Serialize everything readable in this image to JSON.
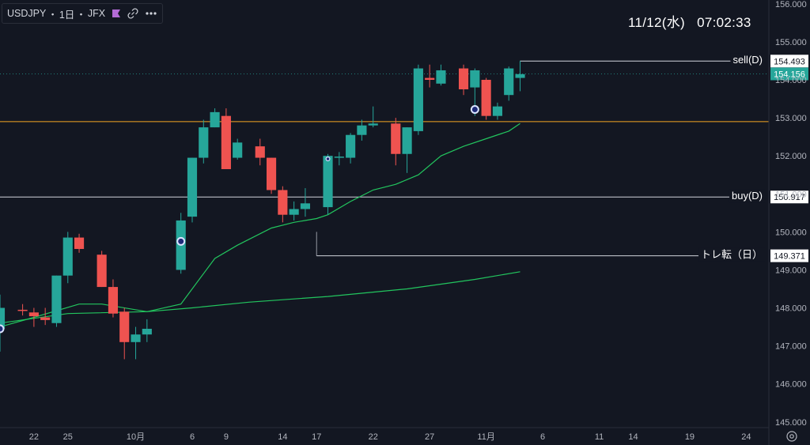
{
  "symbol_bar": {
    "symbol": "USDJPY",
    "separator": "・",
    "timeframe": "1日",
    "exchange": "JFX",
    "flag_icon": "flag-icon",
    "link_icon": "link-icon",
    "more_icon": "more-icon"
  },
  "clock": {
    "date": "11/12(水)",
    "time": "07:02:33"
  },
  "settings_icon": "gear-icon",
  "colors": {
    "background": "#131722",
    "up": "#26a69a",
    "down": "#ef5350",
    "ma_fast": "#22c55e",
    "ma_slow": "#22c55e",
    "orange_line": "#f5a623",
    "level_line": "#d1d4dc",
    "last_price": "#26a69a"
  },
  "chart_data": {
    "type": "candlestick",
    "x_start": "2025-09-19",
    "x_end": "2025-11-26",
    "y_range": [
      144.85,
      156.1
    ],
    "y_ticks": [
      "145.000",
      "146.000",
      "147.000",
      "148.000",
      "149.000",
      "150.000",
      "151.000",
      "152.000",
      "153.000",
      "154.000",
      "155.000",
      "156.000"
    ],
    "x_ticks": [
      {
        "date": "2025-09-22",
        "label": "22"
      },
      {
        "date": "2025-09-25",
        "label": "25"
      },
      {
        "date": "2025-10-01",
        "label": "10月"
      },
      {
        "date": "2025-10-06",
        "label": "6"
      },
      {
        "date": "2025-10-09",
        "label": "9"
      },
      {
        "date": "2025-10-14",
        "label": "14"
      },
      {
        "date": "2025-10-17",
        "label": "17"
      },
      {
        "date": "2025-10-22",
        "label": "22"
      },
      {
        "date": "2025-10-27",
        "label": "27"
      },
      {
        "date": "2025-11-01",
        "label": "11月"
      },
      {
        "date": "2025-11-06",
        "label": "6"
      },
      {
        "date": "2025-11-11",
        "label": "11"
      },
      {
        "date": "2025-11-14",
        "label": "14"
      },
      {
        "date": "2025-11-19",
        "label": "19"
      },
      {
        "date": "2025-11-24",
        "label": "24"
      }
    ],
    "candles": [
      {
        "date": "2025-09-19",
        "o": 147.45,
        "h": 148.35,
        "l": 146.85,
        "c": 148.0
      },
      {
        "date": "2025-09-21",
        "o": 147.95,
        "h": 148.1,
        "l": 147.8,
        "c": 147.92
      },
      {
        "date": "2025-09-22",
        "o": 147.88,
        "h": 148.0,
        "l": 147.5,
        "c": 147.78
      },
      {
        "date": "2025-09-23",
        "o": 147.75,
        "h": 148.0,
        "l": 147.55,
        "c": 147.68
      },
      {
        "date": "2025-09-24",
        "o": 147.6,
        "h": 148.85,
        "l": 147.5,
        "c": 148.85
      },
      {
        "date": "2025-09-25",
        "o": 148.85,
        "h": 150.0,
        "l": 148.65,
        "c": 149.85
      },
      {
        "date": "2025-09-26",
        "o": 149.85,
        "h": 149.95,
        "l": 149.45,
        "c": 149.55
      },
      {
        "date": "2025-09-28",
        "o": 149.4,
        "h": 149.5,
        "l": 148.55,
        "c": 148.55
      },
      {
        "date": "2025-09-29",
        "o": 148.55,
        "h": 148.75,
        "l": 147.75,
        "c": 147.85
      },
      {
        "date": "2025-09-30",
        "o": 147.9,
        "h": 148.0,
        "l": 146.65,
        "c": 147.1
      },
      {
        "date": "2025-10-01",
        "o": 147.1,
        "h": 147.5,
        "l": 146.65,
        "c": 147.3
      },
      {
        "date": "2025-10-02",
        "o": 147.3,
        "h": 147.7,
        "l": 147.1,
        "c": 147.45
      },
      {
        "date": "2025-10-05",
        "o": 149.0,
        "h": 150.5,
        "l": 148.9,
        "c": 150.3
      },
      {
        "date": "2025-10-06",
        "o": 150.4,
        "h": 151.95,
        "l": 150.25,
        "c": 151.95
      },
      {
        "date": "2025-10-07",
        "o": 151.95,
        "h": 152.95,
        "l": 151.8,
        "c": 152.75
      },
      {
        "date": "2025-10-08",
        "o": 152.75,
        "h": 153.25,
        "l": 152.75,
        "c": 153.15
      },
      {
        "date": "2025-10-09",
        "o": 153.05,
        "h": 153.25,
        "l": 151.65,
        "c": 151.65
      },
      {
        "date": "2025-10-10",
        "o": 151.95,
        "h": 152.45,
        "l": 151.9,
        "c": 152.35
      },
      {
        "date": "2025-10-12",
        "o": 152.25,
        "h": 152.45,
        "l": 151.75,
        "c": 151.95
      },
      {
        "date": "2025-10-13",
        "o": 151.95,
        "h": 151.95,
        "l": 151.0,
        "c": 151.1
      },
      {
        "date": "2025-10-14",
        "o": 151.1,
        "h": 151.2,
        "l": 150.25,
        "c": 150.45
      },
      {
        "date": "2025-10-15",
        "o": 150.45,
        "h": 150.8,
        "l": 150.3,
        "c": 150.6
      },
      {
        "date": "2025-10-16",
        "o": 150.6,
        "h": 151.15,
        "l": 150.4,
        "c": 150.75
      },
      {
        "date": "2025-10-18",
        "o": 150.65,
        "h": 152.05,
        "l": 150.45,
        "c": 152.0
      },
      {
        "date": "2025-10-19",
        "o": 151.95,
        "h": 152.1,
        "l": 151.75,
        "c": 151.98
      },
      {
        "date": "2025-10-20",
        "o": 151.95,
        "h": 152.6,
        "l": 151.8,
        "c": 152.55
      },
      {
        "date": "2025-10-21",
        "o": 152.55,
        "h": 152.95,
        "l": 152.4,
        "c": 152.8
      },
      {
        "date": "2025-10-22",
        "o": 152.8,
        "h": 153.3,
        "l": 152.75,
        "c": 152.85
      },
      {
        "date": "2025-10-24",
        "o": 152.85,
        "h": 153.0,
        "l": 151.75,
        "c": 152.05
      },
      {
        "date": "2025-10-25",
        "o": 152.05,
        "h": 152.75,
        "l": 151.55,
        "c": 152.75
      },
      {
        "date": "2025-10-26",
        "o": 152.65,
        "h": 154.4,
        "l": 152.55,
        "c": 154.3
      },
      {
        "date": "2025-10-27",
        "o": 154.05,
        "h": 154.4,
        "l": 153.8,
        "c": 154.0
      },
      {
        "date": "2025-10-28",
        "o": 153.9,
        "h": 154.4,
        "l": 153.85,
        "c": 154.25
      },
      {
        "date": "2025-10-30",
        "o": 154.3,
        "h": 154.4,
        "l": 153.6,
        "c": 153.75
      },
      {
        "date": "2025-10-31",
        "o": 153.8,
        "h": 154.3,
        "l": 153.05,
        "c": 154.25
      },
      {
        "date": "2025-11-01",
        "o": 154.0,
        "h": 154.05,
        "l": 152.95,
        "c": 153.05
      },
      {
        "date": "2025-11-02",
        "o": 153.05,
        "h": 153.4,
        "l": 152.95,
        "c": 153.3
      },
      {
        "date": "2025-11-03",
        "o": 153.6,
        "h": 154.35,
        "l": 153.45,
        "c": 154.3
      },
      {
        "date": "2025-11-04",
        "o": 154.05,
        "h": 154.5,
        "l": 153.7,
        "c": 154.15
      }
    ],
    "ma_fast": [
      {
        "date": "2025-09-19",
        "v": 147.5
      },
      {
        "date": "2025-09-22",
        "v": 147.75
      },
      {
        "date": "2025-09-26",
        "v": 148.1
      },
      {
        "date": "2025-09-28",
        "v": 148.1
      },
      {
        "date": "2025-10-02",
        "v": 147.9
      },
      {
        "date": "2025-10-05",
        "v": 148.1
      },
      {
        "date": "2025-10-07",
        "v": 148.9
      },
      {
        "date": "2025-10-08",
        "v": 149.3
      },
      {
        "date": "2025-10-10",
        "v": 149.65
      },
      {
        "date": "2025-10-13",
        "v": 150.1
      },
      {
        "date": "2025-10-15",
        "v": 150.25
      },
      {
        "date": "2025-10-17",
        "v": 150.35
      },
      {
        "date": "2025-10-18",
        "v": 150.45
      },
      {
        "date": "2025-10-20",
        "v": 150.8
      },
      {
        "date": "2025-10-22",
        "v": 151.1
      },
      {
        "date": "2025-10-24",
        "v": 151.25
      },
      {
        "date": "2025-10-26",
        "v": 151.5
      },
      {
        "date": "2025-10-28",
        "v": 152.0
      },
      {
        "date": "2025-10-30",
        "v": 152.25
      },
      {
        "date": "2025-11-01",
        "v": 152.45
      },
      {
        "date": "2025-11-03",
        "v": 152.65
      },
      {
        "date": "2025-11-04",
        "v": 152.85
      }
    ],
    "ma_slow": [
      {
        "date": "2025-09-19",
        "v": 147.6
      },
      {
        "date": "2025-09-25",
        "v": 147.85
      },
      {
        "date": "2025-10-02",
        "v": 147.9
      },
      {
        "date": "2025-10-06",
        "v": 148.0
      },
      {
        "date": "2025-10-11",
        "v": 148.15
      },
      {
        "date": "2025-10-18",
        "v": 148.3
      },
      {
        "date": "2025-10-25",
        "v": 148.5
      },
      {
        "date": "2025-10-31",
        "v": 148.75
      },
      {
        "date": "2025-11-04",
        "v": 148.95
      }
    ],
    "orange_level": 152.9,
    "trend_line": {
      "from_date": "2025-10-17",
      "top": 150.0,
      "bottom": 149.371
    },
    "levels": [
      {
        "name": "sell(D)",
        "value": 154.493,
        "from_date": "2025-11-04",
        "label": "sell(D)",
        "price_label": "154.493"
      },
      {
        "name": "buy(D)",
        "value": 150.917,
        "from_date": "2025-09-19",
        "label": "buy(D)",
        "price_label": "150.917"
      },
      {
        "name": "トレ転（日）",
        "value": 149.371,
        "from_date": "2025-10-17",
        "label": "トレ転（日）",
        "price_label": "149.371"
      }
    ],
    "last_price": {
      "value": 154.156,
      "label": "154.156"
    },
    "markers": [
      {
        "date": "2025-09-19",
        "value": 147.45
      },
      {
        "date": "2025-10-05",
        "value": 149.75
      },
      {
        "date": "2025-10-31",
        "value": 153.22
      }
    ],
    "small_markers": [
      {
        "date": "2025-10-18",
        "value": 151.92
      }
    ]
  }
}
